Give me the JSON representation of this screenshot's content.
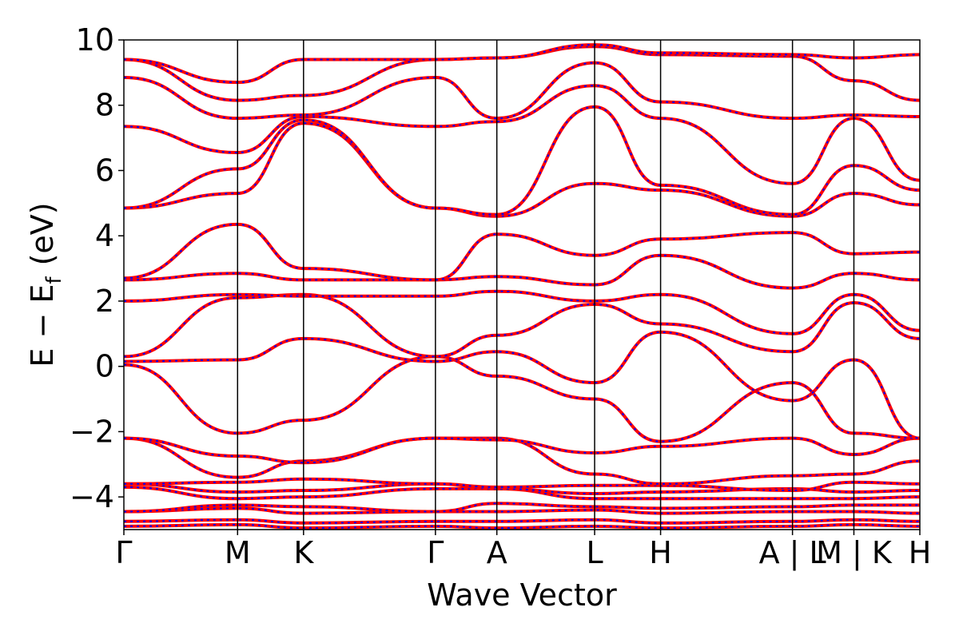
{
  "chart_data": {
    "type": "line",
    "title": "",
    "xlabel": "Wave Vector",
    "ylabel": "E − E",
    "ylabel_sub": "f",
    "ylabel_unit": "(eV)",
    "ylim": [
      -5,
      10
    ],
    "yticks": [
      -4,
      -2,
      0,
      2,
      4,
      6,
      8,
      10
    ],
    "ytick_labels": [
      "−4",
      "−2",
      "0",
      "2",
      "4",
      "6",
      "8",
      "10"
    ],
    "legend": "none",
    "grid": false,
    "path_points": [
      0,
      1.0,
      1.58,
      2.74,
      3.28,
      4.14,
      4.72,
      5.88,
      6.42,
      7.0
    ],
    "kpoint_labels": [
      {
        "label": "Γ",
        "position": 0
      },
      {
        "label": "M",
        "position": 1.0
      },
      {
        "label": "K",
        "position": 1.58
      },
      {
        "label": "Γ",
        "position": 2.74
      },
      {
        "label": "A",
        "position": 3.28
      },
      {
        "label": "L",
        "position": 4.14
      },
      {
        "label": "H",
        "position": 4.72
      },
      {
        "label": "A | L",
        "position": 5.88
      },
      {
        "label": "M | K",
        "position": 6.42
      },
      {
        "label": "H",
        "position": 7.0
      }
    ],
    "series_colors": [
      "#ff0000",
      "#0000ff"
    ],
    "bands": [
      [
        -4.9,
        -4.85,
        -4.95,
        -4.9,
        -4.95,
        -4.9,
        -4.95,
        -4.9,
        -4.85,
        -4.9
      ],
      [
        -4.75,
        -4.7,
        -4.8,
        -4.75,
        -4.75,
        -4.7,
        -4.8,
        -4.75,
        -4.7,
        -4.75
      ],
      [
        -4.45,
        -4.35,
        -4.5,
        -4.45,
        -4.45,
        -4.4,
        -4.5,
        -4.45,
        -4.45,
        -4.5
      ],
      [
        -4.45,
        -4.25,
        -4.3,
        -4.45,
        -4.2,
        -4.3,
        -4.35,
        -4.3,
        -4.25,
        -4.25
      ],
      [
        -3.7,
        -4.05,
        -4.0,
        -3.75,
        -3.75,
        -4.05,
        -4.05,
        -4.05,
        -4.05,
        -4.0
      ],
      [
        -3.6,
        -3.85,
        -3.8,
        -3.6,
        -3.75,
        -3.9,
        -3.85,
        -3.75,
        -3.85,
        -3.8
      ],
      [
        -3.6,
        -3.55,
        -3.45,
        -3.6,
        -3.7,
        -3.65,
        -3.65,
        -3.8,
        -3.55,
        -3.6
      ],
      [
        -2.2,
        -3.4,
        -2.9,
        -2.2,
        -2.2,
        -3.3,
        -3.6,
        -3.35,
        -3.3,
        -2.9
      ],
      [
        -2.2,
        -2.75,
        -2.95,
        -2.2,
        -2.25,
        -2.65,
        -2.45,
        -2.2,
        -2.7,
        -2.2
      ],
      [
        0.05,
        -2.05,
        -1.65,
        0.3,
        -0.3,
        -1.0,
        -2.3,
        -0.5,
        -2.05,
        -2.2
      ],
      [
        0.15,
        0.2,
        0.85,
        0.15,
        0.45,
        -0.5,
        1.05,
        -1.05,
        0.2,
        -2.2
      ],
      [
        0.3,
        2.1,
        2.2,
        0.3,
        0.95,
        1.9,
        1.3,
        0.45,
        1.95,
        0.85
      ],
      [
        2.0,
        2.2,
        2.15,
        2.15,
        2.3,
        2.0,
        2.2,
        1.0,
        2.2,
        1.1
      ],
      [
        2.65,
        2.85,
        2.65,
        2.65,
        2.75,
        2.5,
        3.4,
        2.4,
        2.85,
        2.65
      ],
      [
        2.7,
        4.35,
        3.0,
        2.65,
        4.05,
        3.4,
        3.9,
        4.1,
        3.45,
        3.5
      ],
      [
        4.85,
        5.3,
        7.45,
        4.85,
        4.6,
        5.6,
        5.4,
        4.6,
        5.3,
        4.95
      ],
      [
        4.85,
        6.05,
        7.55,
        4.85,
        4.65,
        7.95,
        5.55,
        4.65,
        6.15,
        5.4
      ],
      [
        7.35,
        6.55,
        7.65,
        7.35,
        7.5,
        8.6,
        7.6,
        5.6,
        7.6,
        5.7
      ],
      [
        8.85,
        7.6,
        7.7,
        8.85,
        7.6,
        9.3,
        8.1,
        7.6,
        7.7,
        7.65
      ],
      [
        9.4,
        8.15,
        8.3,
        9.4,
        9.45,
        9.8,
        9.55,
        9.5,
        8.75,
        8.15
      ],
      [
        9.4,
        8.7,
        9.4,
        9.4,
        9.45,
        9.85,
        9.6,
        9.55,
        9.45,
        9.55
      ]
    ]
  }
}
